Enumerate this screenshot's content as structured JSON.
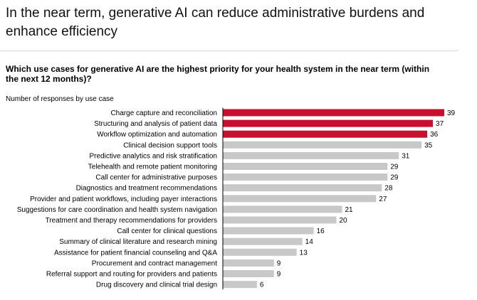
{
  "header": {
    "headline": "In the near term, generative AI can reduce administrative burdens and enhance efficiency"
  },
  "chart_data": {
    "type": "bar",
    "orientation": "horizontal",
    "title": "Which use cases for generative AI are the highest priority for your health system in the near term (within the next 12 months)?",
    "subtitle": "Number of responses by use case",
    "categories": [
      "Charge capture and reconciliation",
      "Structuring and analysis of patient data",
      "Workflow optimization and automation",
      "Clinical decision support tools",
      "Predictive analytics and risk stratification",
      "Telehealth and remote patient monitoring",
      "Call center for administrative purposes",
      "Diagnostics and treatment recommendations",
      "Provider and patient workflows, including payer interactions",
      "Suggestions for care coordination and health system navigation",
      "Treatment and therapy recommendations for providers",
      "Call center for clinical questions",
      "Summary of clinical literature and research mining",
      "Assistance for patient financial counseling and Q&A",
      "Procurement and contract management",
      "Referral support and routing for providers and patients",
      "Drug discovery and clinical trial design"
    ],
    "values": [
      39,
      37,
      36,
      35,
      31,
      29,
      29,
      28,
      27,
      21,
      20,
      16,
      14,
      13,
      9,
      9,
      6
    ],
    "highlighted_count": 3,
    "colors": {
      "highlight": "#c8102e",
      "default": "#c8c8c8",
      "axis": "#000000"
    },
    "xlim": [
      0,
      39
    ],
    "grid": false,
    "legend": "none"
  }
}
